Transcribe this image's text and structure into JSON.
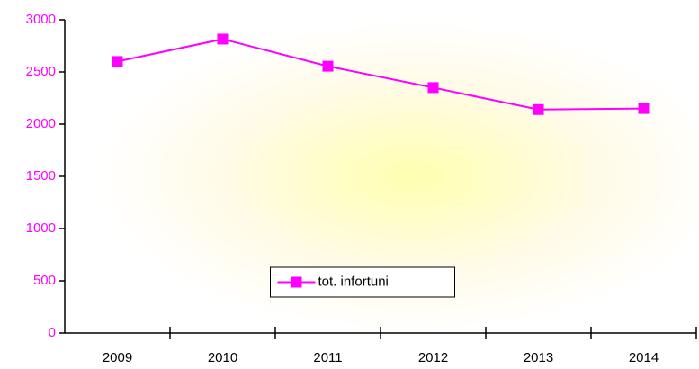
{
  "chart_data": {
    "type": "line",
    "categories": [
      "2009",
      "2010",
      "2011",
      "2012",
      "2013",
      "2014"
    ],
    "series": [
      {
        "name": "tot. infortuni",
        "color": "#ff00ff",
        "values": [
          2600,
          2815,
          2555,
          2350,
          2140,
          2150
        ]
      }
    ],
    "ylim": [
      0,
      3000
    ],
    "yticks": [
      0,
      500,
      1000,
      1500,
      2000,
      2500,
      3000
    ],
    "ytick_color": "#ff00ff",
    "grid": false,
    "legend": "lower center"
  }
}
